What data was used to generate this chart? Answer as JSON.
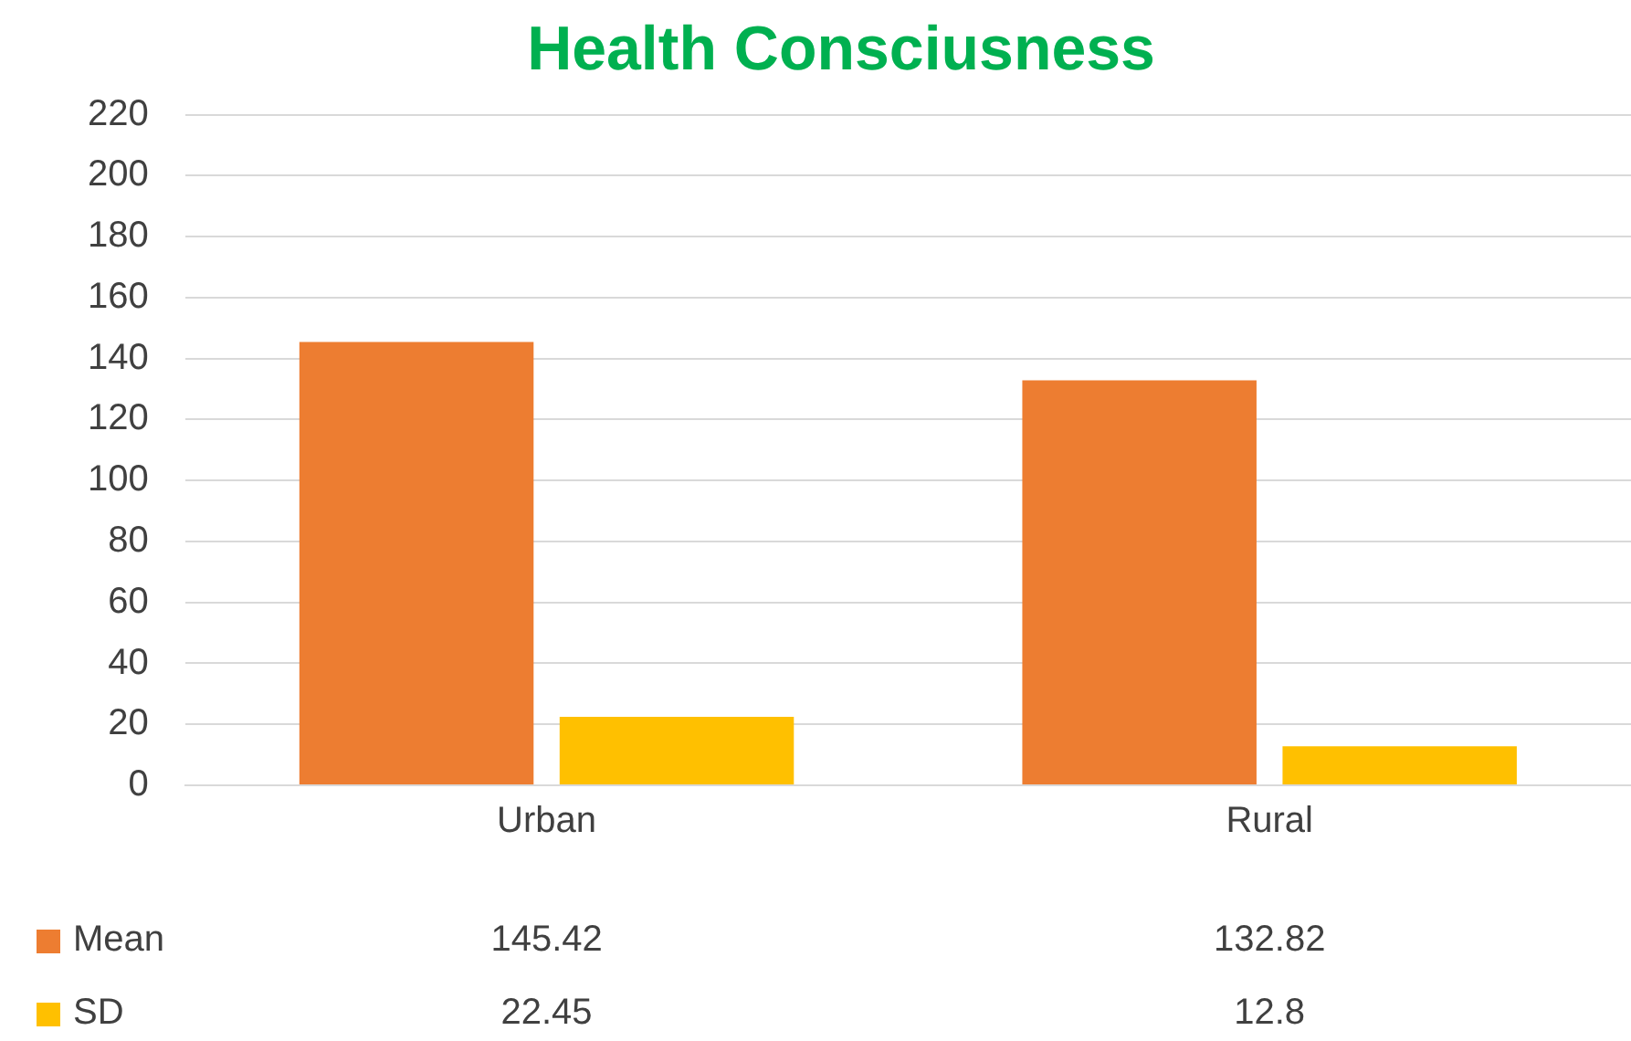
{
  "chart_data": {
    "type": "bar",
    "title": "Health Consciusness",
    "categories": [
      "Urban",
      "Rural"
    ],
    "series": [
      {
        "name": "Mean",
        "color": "#ed7d31",
        "values": [
          145.42,
          132.82
        ]
      },
      {
        "name": "SD",
        "color": "#ffc000",
        "values": [
          22.45,
          12.8
        ]
      }
    ],
    "ylim": [
      0,
      220
    ],
    "yticks": [
      0,
      20,
      40,
      60,
      80,
      100,
      120,
      140,
      160,
      180,
      200,
      220
    ],
    "grid": "y",
    "legend": "bottom",
    "data_labels": true
  }
}
